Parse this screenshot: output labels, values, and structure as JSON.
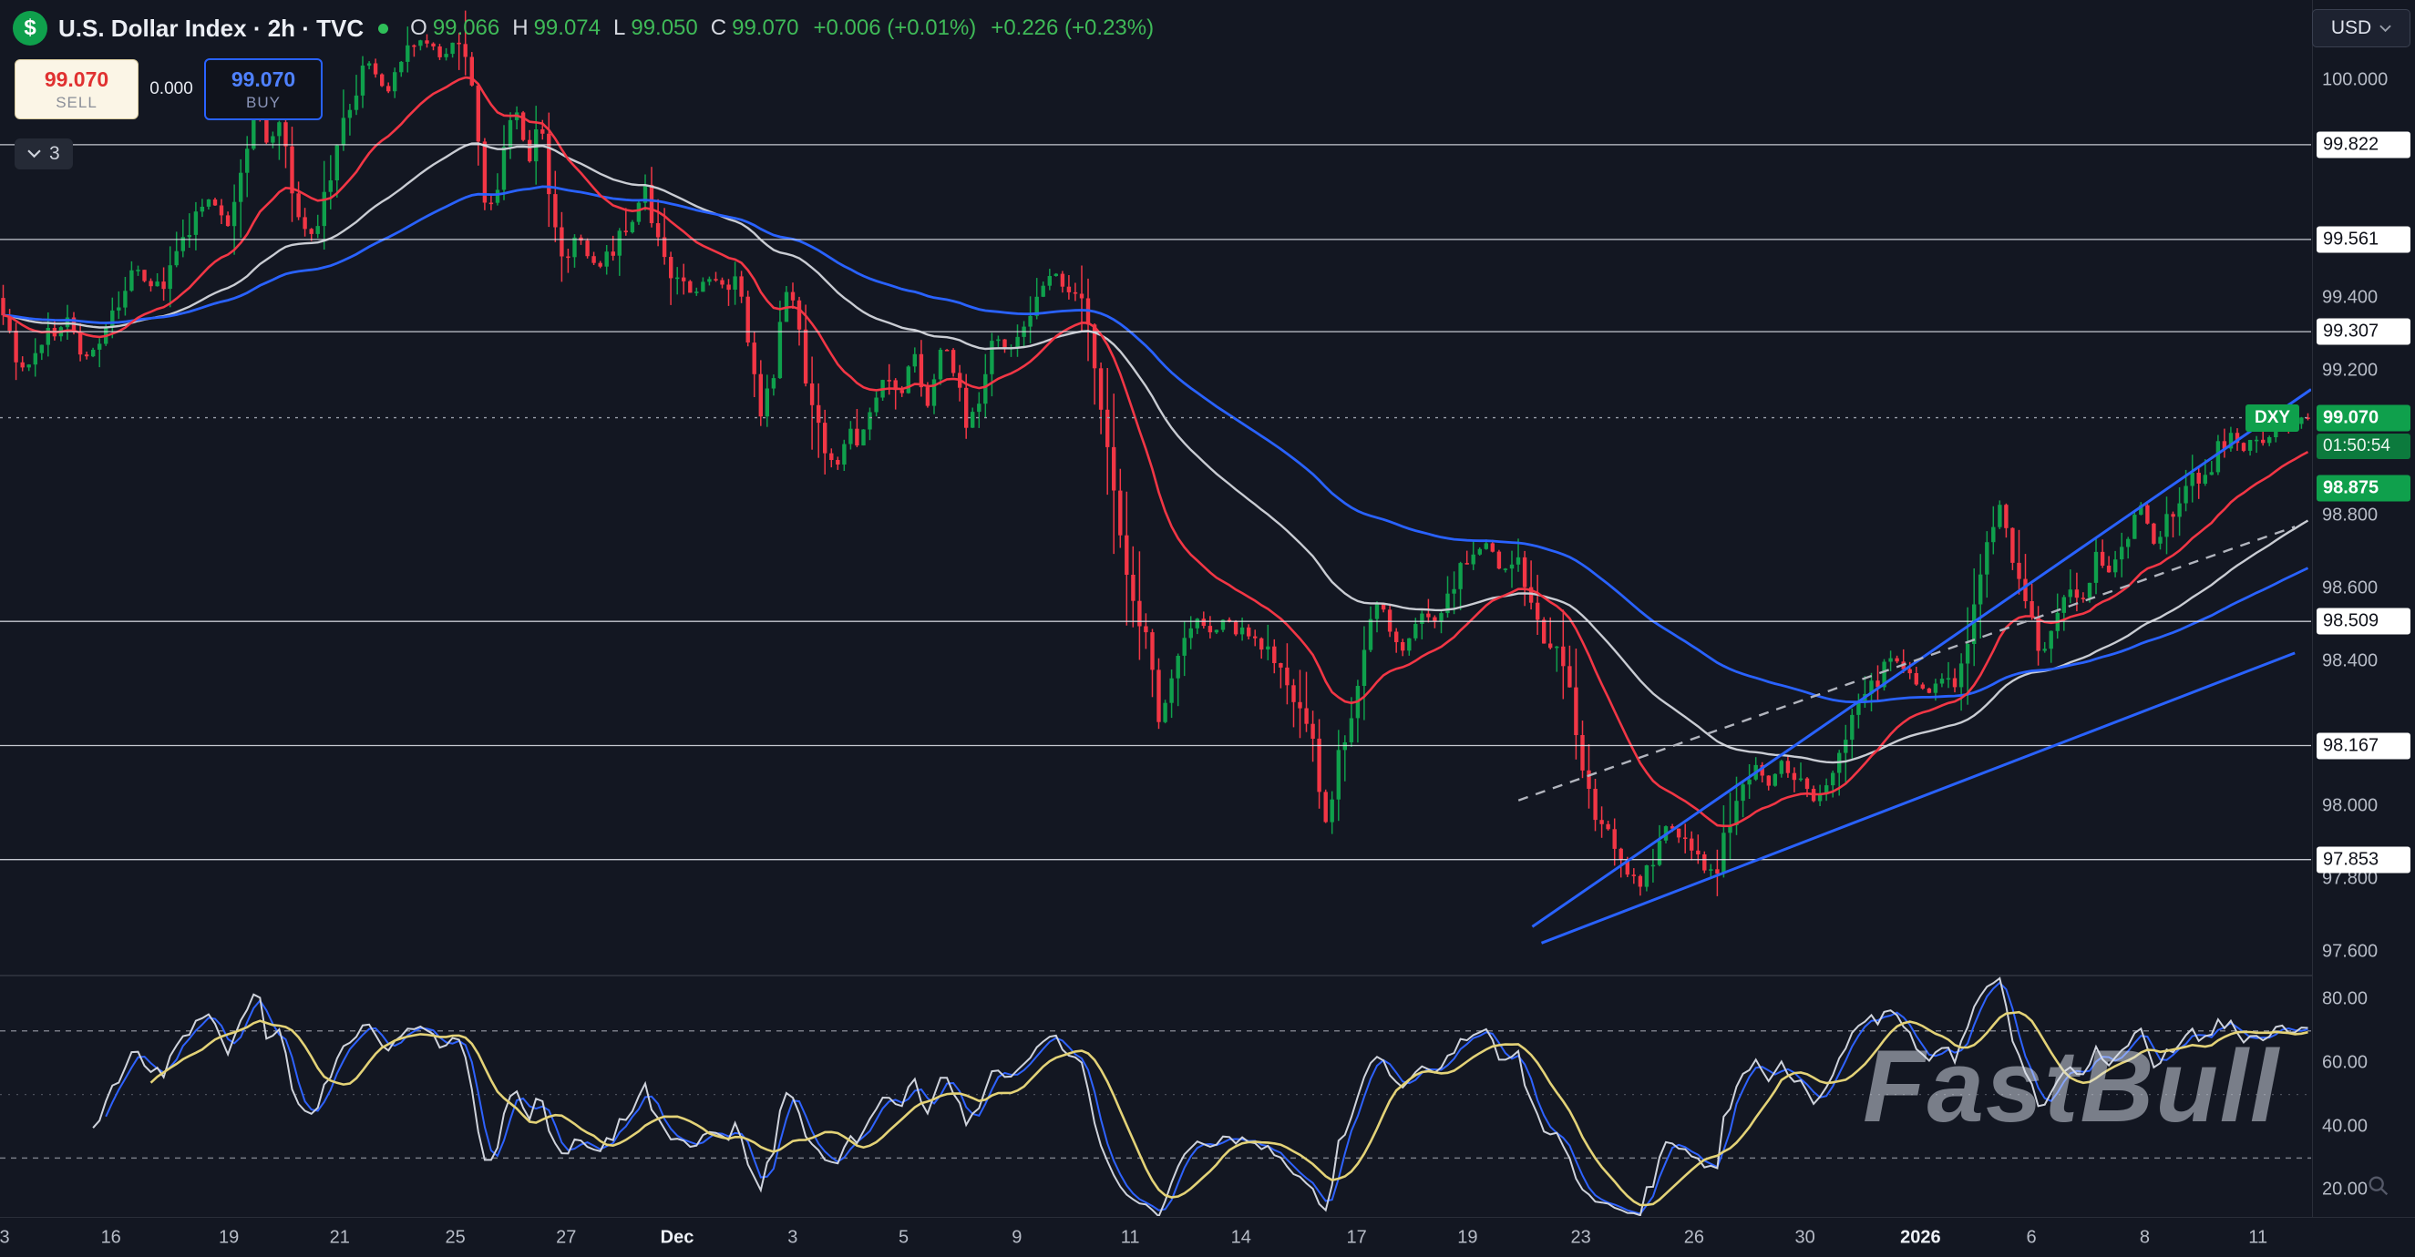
{
  "header": {
    "symbol_glyph": "$",
    "title": "U.S. Dollar Index · 2h · TVC",
    "ohlc": {
      "o_label": "O",
      "o": "99.066",
      "h_label": "H",
      "h": "99.074",
      "l_label": "L",
      "l": "99.050",
      "c_label": "C",
      "c": "99.070",
      "change_1": "+0.006 (+0.01%)",
      "change_2": "+0.226 (+0.23%)"
    }
  },
  "order_panel": {
    "sell_price": "99.070",
    "sell_label": "SELL",
    "spread": "0.000",
    "buy_price": "99.070",
    "buy_label": "BUY"
  },
  "objects_toggle": {
    "count": "3"
  },
  "currency_selector": {
    "value": "USD"
  },
  "watermark": "FastBull",
  "price_axis": {
    "ticks": [
      {
        "label": "100.000",
        "price": 100.0
      },
      {
        "label": "99.400",
        "price": 99.4
      },
      {
        "label": "99.200",
        "price": 99.2
      },
      {
        "label": "98.800",
        "price": 98.8
      },
      {
        "label": "98.600",
        "price": 98.6
      },
      {
        "label": "98.400",
        "price": 98.4
      },
      {
        "label": "98.000",
        "price": 98.0
      },
      {
        "label": "97.800",
        "price": 97.8
      },
      {
        "label": "97.600",
        "price": 97.6
      }
    ],
    "level_labels": [
      {
        "label": "99.822",
        "price": 99.822
      },
      {
        "label": "99.561",
        "price": 99.561
      },
      {
        "label": "99.307",
        "price": 99.307
      },
      {
        "label": "98.509",
        "price": 98.509
      },
      {
        "label": "98.167",
        "price": 98.167
      },
      {
        "label": "97.853",
        "price": 97.853
      }
    ],
    "last_price": {
      "label": "99.070",
      "price": 99.07,
      "countdown": "01:50:54"
    },
    "position_label": {
      "label": "98.875",
      "price": 98.875
    },
    "symbol_tag": {
      "label": "DXY",
      "price": 99.07
    }
  },
  "indicator_axis": {
    "ticks": [
      {
        "label": "80.00",
        "value": 80
      },
      {
        "label": "60.00",
        "value": 60
      },
      {
        "label": "40.00",
        "value": 40
      },
      {
        "label": "20.00",
        "value": 20
      }
    ]
  },
  "time_axis": [
    {
      "label": "3",
      "x": 0.002
    },
    {
      "label": "16",
      "x": 0.048
    },
    {
      "label": "19",
      "x": 0.099
    },
    {
      "label": "21",
      "x": 0.147
    },
    {
      "label": "25",
      "x": 0.197
    },
    {
      "label": "27",
      "x": 0.245
    },
    {
      "label": "Dec",
      "x": 0.293,
      "major": true
    },
    {
      "label": "3",
      "x": 0.343
    },
    {
      "label": "5",
      "x": 0.391
    },
    {
      "label": "9",
      "x": 0.44
    },
    {
      "label": "11",
      "x": 0.489
    },
    {
      "label": "14",
      "x": 0.537
    },
    {
      "label": "17",
      "x": 0.587
    },
    {
      "label": "19",
      "x": 0.635
    },
    {
      "label": "23",
      "x": 0.684
    },
    {
      "label": "26",
      "x": 0.733
    },
    {
      "label": "30",
      "x": 0.781
    },
    {
      "label": "2026",
      "x": 0.831,
      "major": true
    },
    {
      "label": "6",
      "x": 0.879
    },
    {
      "label": "8",
      "x": 0.928
    },
    {
      "label": "11",
      "x": 0.977
    }
  ],
  "chart_data": {
    "type": "candlestick",
    "symbol": "DXY",
    "timeframe": "2h",
    "exchange": "TVC",
    "num_candles": 360,
    "last_price": 99.07,
    "y_axis": {
      "price_at_top": 100.2206,
      "price_at_bottom": 97.536
    },
    "indicator_axis_range": {
      "value_at_top": 87.1,
      "value_at_bottom": 11.8
    },
    "colors": {
      "up": "#0fa04c",
      "down": "#f23645"
    },
    "levels": [
      99.822,
      99.561,
      99.307,
      98.509,
      98.167,
      97.853
    ],
    "trendlines": [
      {
        "x1": 0.663,
        "p1": 97.668,
        "x2": 1.0,
        "p2": 99.148,
        "style": "solid",
        "color": "#2962ff"
      },
      {
        "x1": 0.667,
        "p1": 97.623,
        "x2": 0.993,
        "p2": 98.422,
        "style": "solid",
        "color": "#2962ff"
      },
      {
        "x1": 0.657,
        "p1": 98.016,
        "x2": 0.993,
        "p2": 98.77,
        "style": "dashed",
        "color": "#b2b5be"
      }
    ],
    "moving_averages": [
      {
        "name": "ema-slow-gray",
        "period": 55,
        "color": "#c9ccd3",
        "width": 2.4
      },
      {
        "name": "ema-slower-blue",
        "period": 100,
        "color": "#2962ff",
        "width": 2.8
      },
      {
        "name": "ema-fast-red",
        "period": 21,
        "color": "#f23645",
        "width": 2.6
      }
    ],
    "rsi": {
      "period": 14,
      "smooth": 10,
      "fast_smooth": 3,
      "levels": [
        70,
        50,
        30
      ],
      "line_color": "#cfd3dc",
      "smooth_color": "#e3d277",
      "fast_color": "#2e62ff"
    },
    "anchors": [
      [
        0,
        99.4
      ],
      [
        0.006,
        99.3
      ],
      [
        0.01,
        99.17
      ],
      [
        0.016,
        99.24
      ],
      [
        0.022,
        99.3
      ],
      [
        0.03,
        99.33
      ],
      [
        0.04,
        99.22
      ],
      [
        0.05,
        99.36
      ],
      [
        0.06,
        99.48
      ],
      [
        0.07,
        99.42
      ],
      [
        0.08,
        99.55
      ],
      [
        0.09,
        99.68
      ],
      [
        0.1,
        99.6
      ],
      [
        0.107,
        99.75
      ],
      [
        0.112,
        99.98
      ],
      [
        0.117,
        99.82
      ],
      [
        0.123,
        99.88
      ],
      [
        0.13,
        99.62
      ],
      [
        0.137,
        99.58
      ],
      [
        0.143,
        99.7
      ],
      [
        0.152,
        99.92
      ],
      [
        0.16,
        100.05
      ],
      [
        0.168,
        99.96
      ],
      [
        0.177,
        100.08
      ],
      [
        0.185,
        100.12
      ],
      [
        0.193,
        100.06
      ],
      [
        0.2,
        100.12
      ],
      [
        0.205,
        100.02
      ],
      [
        0.21,
        99.7
      ],
      [
        0.215,
        99.62
      ],
      [
        0.22,
        99.85
      ],
      [
        0.225,
        99.92
      ],
      [
        0.23,
        99.78
      ],
      [
        0.235,
        99.88
      ],
      [
        0.24,
        99.65
      ],
      [
        0.245,
        99.5
      ],
      [
        0.252,
        99.56
      ],
      [
        0.26,
        99.48
      ],
      [
        0.268,
        99.55
      ],
      [
        0.275,
        99.62
      ],
      [
        0.28,
        99.7
      ],
      [
        0.287,
        99.55
      ],
      [
        0.293,
        99.45
      ],
      [
        0.301,
        99.4
      ],
      [
        0.308,
        99.46
      ],
      [
        0.315,
        99.42
      ],
      [
        0.321,
        99.45
      ],
      [
        0.327,
        99.22
      ],
      [
        0.331,
        99.08
      ],
      [
        0.337,
        99.2
      ],
      [
        0.341,
        99.45
      ],
      [
        0.345,
        99.38
      ],
      [
        0.351,
        99.15
      ],
      [
        0.358,
        99.0
      ],
      [
        0.363,
        98.93
      ],
      [
        0.369,
        99.06
      ],
      [
        0.373,
        98.98
      ],
      [
        0.38,
        99.1
      ],
      [
        0.385,
        99.2
      ],
      [
        0.391,
        99.12
      ],
      [
        0.397,
        99.25
      ],
      [
        0.403,
        99.1
      ],
      [
        0.409,
        99.28
      ],
      [
        0.413,
        99.22
      ],
      [
        0.42,
        99.05
      ],
      [
        0.427,
        99.15
      ],
      [
        0.432,
        99.3
      ],
      [
        0.437,
        99.25
      ],
      [
        0.44,
        99.28
      ],
      [
        0.447,
        99.35
      ],
      [
        0.453,
        99.45
      ],
      [
        0.458,
        99.48
      ],
      [
        0.463,
        99.38
      ],
      [
        0.468,
        99.44
      ],
      [
        0.473,
        99.3
      ],
      [
        0.479,
        99.05
      ],
      [
        0.484,
        98.85
      ],
      [
        0.489,
        98.65
      ],
      [
        0.494,
        98.52
      ],
      [
        0.499,
        98.42
      ],
      [
        0.503,
        98.22
      ],
      [
        0.508,
        98.35
      ],
      [
        0.513,
        98.44
      ],
      [
        0.52,
        98.5
      ],
      [
        0.527,
        98.48
      ],
      [
        0.533,
        98.52
      ],
      [
        0.537,
        98.46
      ],
      [
        0.543,
        98.5
      ],
      [
        0.55,
        98.42
      ],
      [
        0.557,
        98.35
      ],
      [
        0.563,
        98.28
      ],
      [
        0.57,
        98.15
      ],
      [
        0.575,
        97.95
      ],
      [
        0.58,
        98.12
      ],
      [
        0.587,
        98.28
      ],
      [
        0.593,
        98.5
      ],
      [
        0.599,
        98.55
      ],
      [
        0.604,
        98.45
      ],
      [
        0.61,
        98.42
      ],
      [
        0.617,
        98.55
      ],
      [
        0.622,
        98.48
      ],
      [
        0.627,
        98.58
      ],
      [
        0.633,
        98.65
      ],
      [
        0.64,
        98.7
      ],
      [
        0.645,
        98.72
      ],
      [
        0.651,
        98.66
      ],
      [
        0.657,
        98.7
      ],
      [
        0.663,
        98.55
      ],
      [
        0.67,
        98.45
      ],
      [
        0.677,
        98.43
      ],
      [
        0.681,
        98.3
      ],
      [
        0.685,
        98.12
      ],
      [
        0.69,
        98.0
      ],
      [
        0.695,
        97.93
      ],
      [
        0.701,
        97.88
      ],
      [
        0.707,
        97.8
      ],
      [
        0.711,
        97.78
      ],
      [
        0.717,
        97.86
      ],
      [
        0.722,
        97.95
      ],
      [
        0.728,
        97.92
      ],
      [
        0.733,
        97.88
      ],
      [
        0.739,
        97.82
      ],
      [
        0.743,
        97.8
      ],
      [
        0.749,
        97.95
      ],
      [
        0.755,
        98.05
      ],
      [
        0.76,
        98.1
      ],
      [
        0.767,
        98.05
      ],
      [
        0.772,
        98.12
      ],
      [
        0.777,
        98.08
      ],
      [
        0.781,
        98.1
      ],
      [
        0.787,
        98.0
      ],
      [
        0.792,
        98.04
      ],
      [
        0.797,
        98.15
      ],
      [
        0.803,
        98.25
      ],
      [
        0.809,
        98.3
      ],
      [
        0.815,
        98.36
      ],
      [
        0.82,
        98.42
      ],
      [
        0.825,
        98.38
      ],
      [
        0.831,
        98.35
      ],
      [
        0.836,
        98.3
      ],
      [
        0.841,
        98.38
      ],
      [
        0.847,
        98.32
      ],
      [
        0.852,
        98.42
      ],
      [
        0.857,
        98.6
      ],
      [
        0.863,
        98.78
      ],
      [
        0.867,
        98.83
      ],
      [
        0.872,
        98.7
      ],
      [
        0.877,
        98.58
      ],
      [
        0.883,
        98.45
      ],
      [
        0.887,
        98.42
      ],
      [
        0.892,
        98.55
      ],
      [
        0.897,
        98.62
      ],
      [
        0.903,
        98.58
      ],
      [
        0.908,
        98.68
      ],
      [
        0.913,
        98.64
      ],
      [
        0.919,
        98.72
      ],
      [
        0.924,
        98.78
      ],
      [
        0.928,
        98.82
      ],
      [
        0.933,
        98.72
      ],
      [
        0.939,
        98.78
      ],
      [
        0.944,
        98.84
      ],
      [
        0.949,
        98.92
      ],
      [
        0.955,
        98.88
      ],
      [
        0.96,
        98.97
      ],
      [
        0.965,
        99.02
      ],
      [
        0.971,
        98.97
      ],
      [
        0.976,
        99.03
      ],
      [
        0.981,
        99.0
      ],
      [
        0.987,
        99.05
      ],
      [
        0.992,
        99.04
      ],
      [
        1,
        99.07
      ]
    ]
  }
}
